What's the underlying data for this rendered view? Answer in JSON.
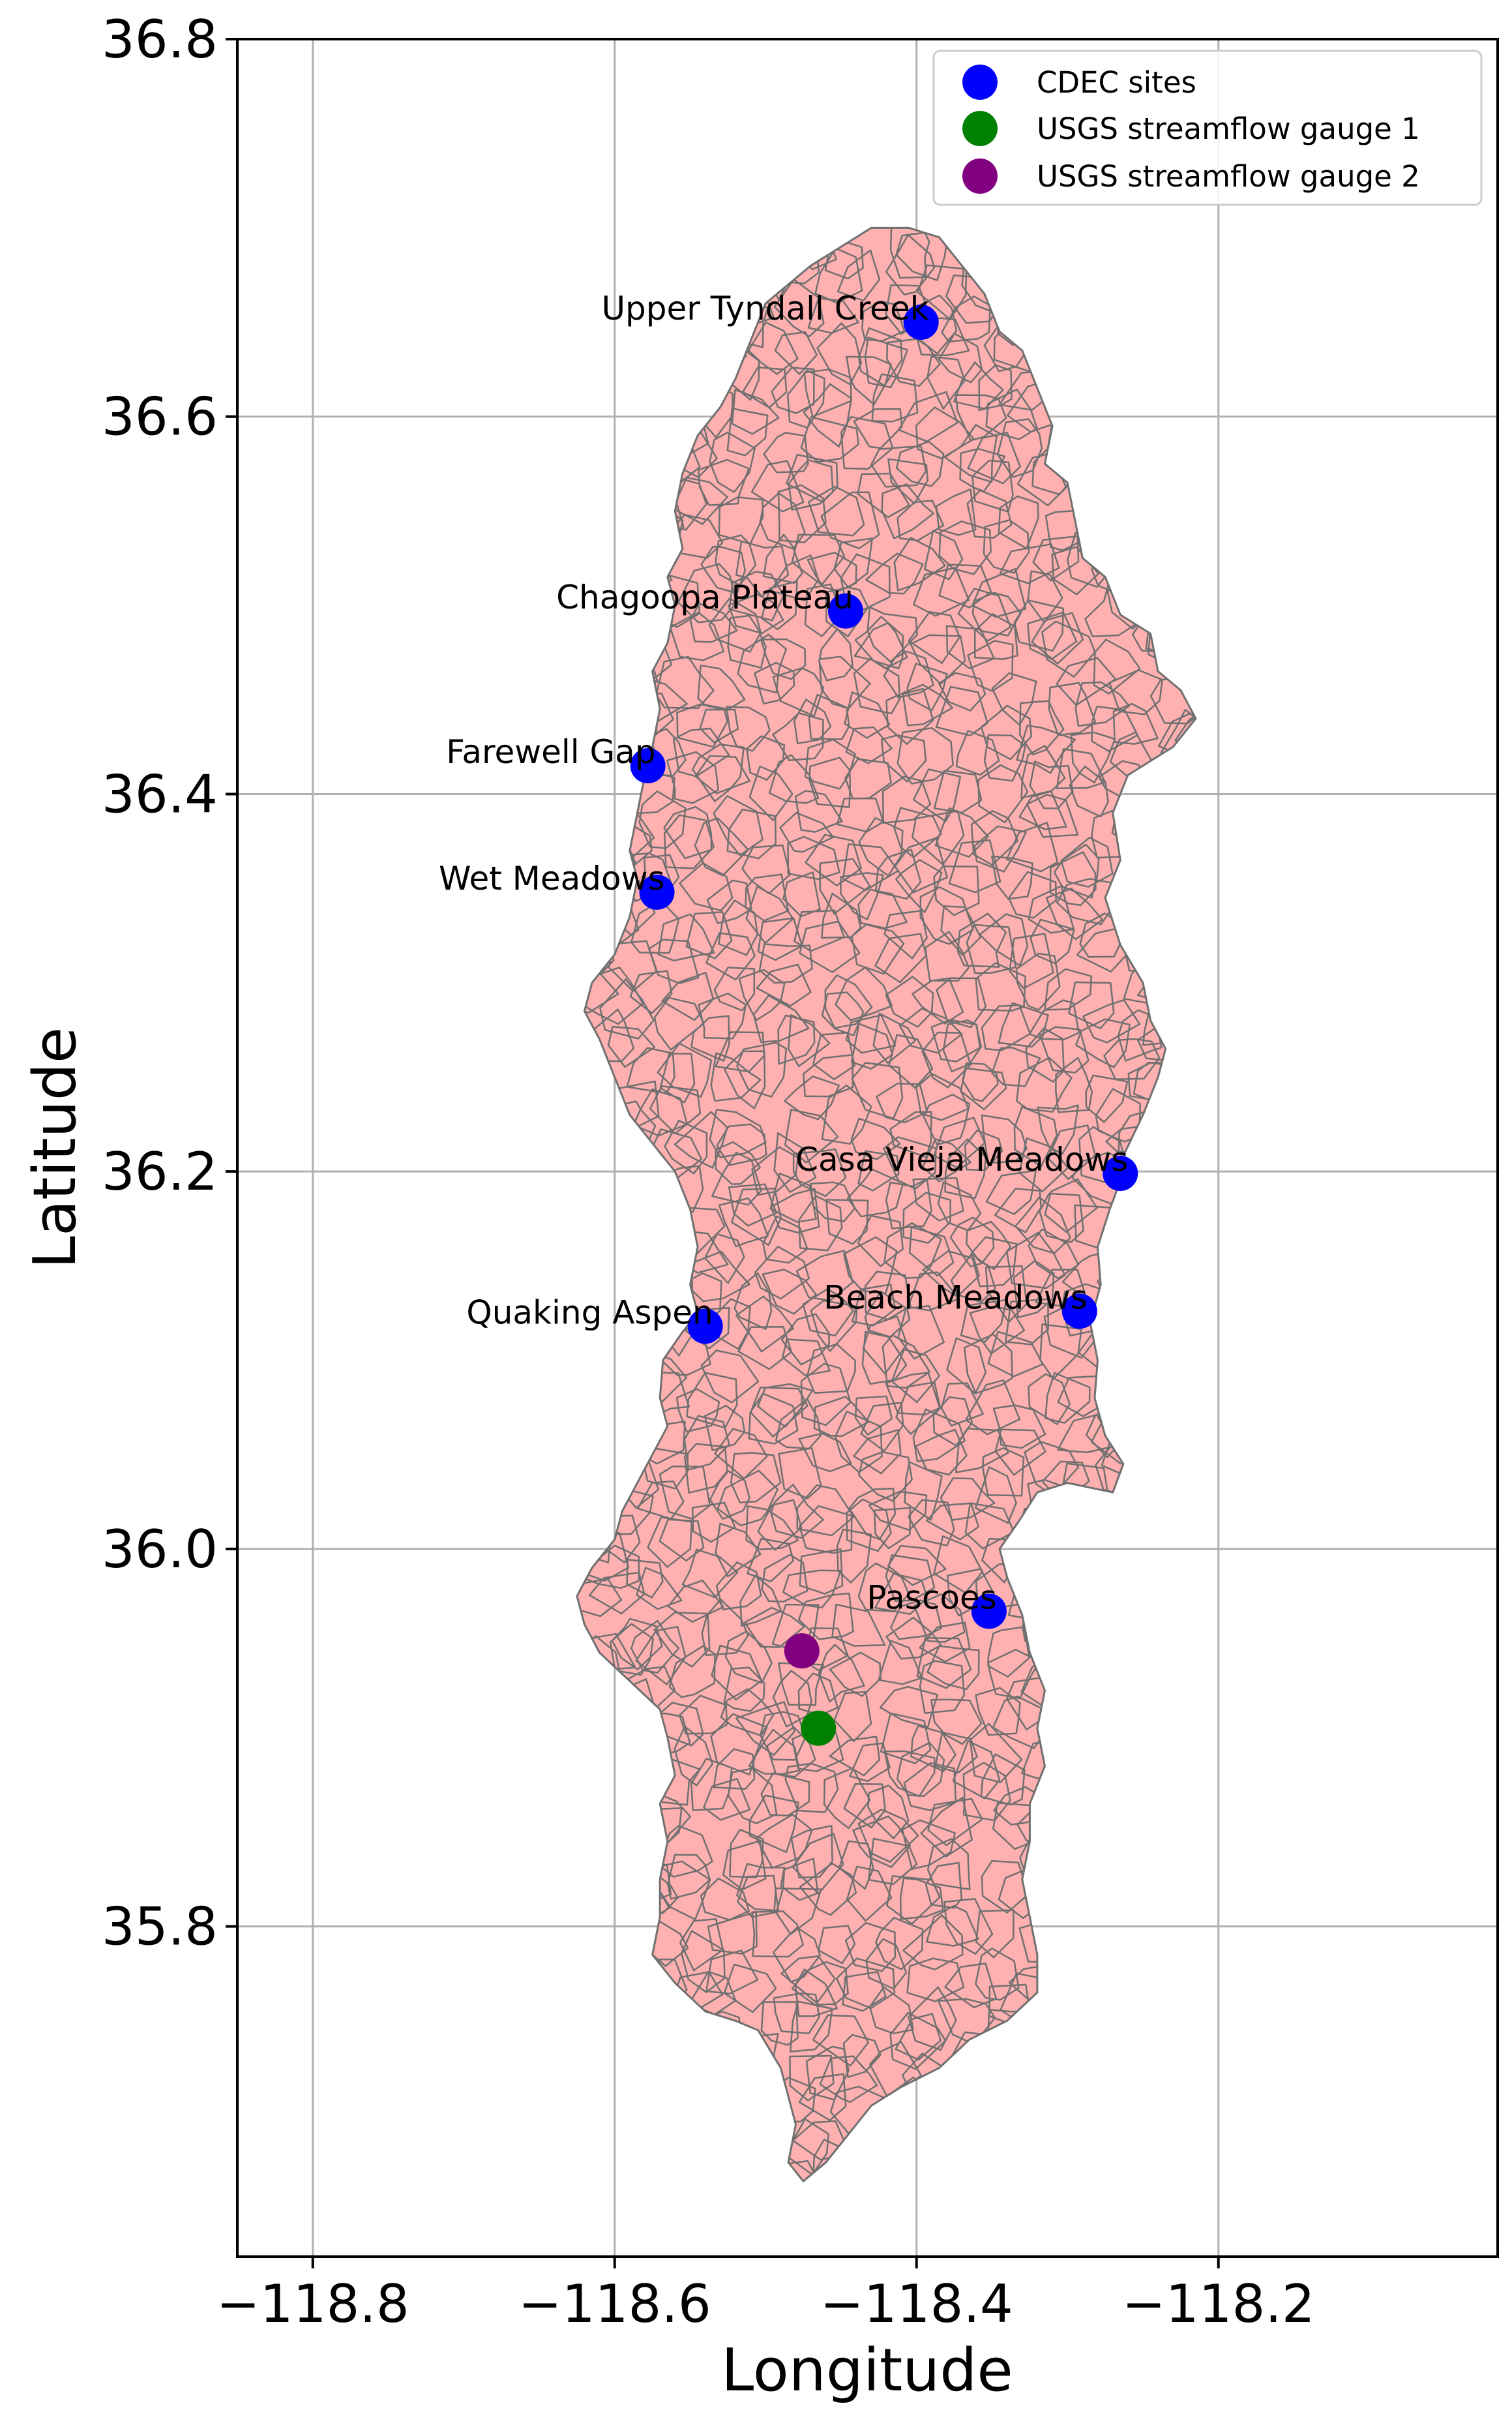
{
  "chart_data": {
    "type": "scatter",
    "xlabel": "Longitude",
    "ylabel": "Latitude",
    "xlim": [
      -118.85,
      -118.015
    ],
    "ylim": [
      35.625,
      36.8
    ],
    "grid": true,
    "xticks": [
      {
        "value": -118.8,
        "label": "−118.8"
      },
      {
        "value": -118.6,
        "label": "−118.6"
      },
      {
        "value": -118.4,
        "label": "−118.4"
      },
      {
        "value": -118.2,
        "label": "−118.2"
      }
    ],
    "yticks": [
      {
        "value": 35.8,
        "label": "35.8"
      },
      {
        "value": 36.0,
        "label": "36.0"
      },
      {
        "value": 36.2,
        "label": "36.2"
      },
      {
        "value": 36.4,
        "label": "36.4"
      },
      {
        "value": 36.6,
        "label": "36.6"
      },
      {
        "value": 36.8,
        "label": "36.8"
      }
    ],
    "watershed": {
      "fill": "#ffb0b0",
      "edge": "#707070",
      "outline": [
        [
          -118.405,
          36.7
        ],
        [
          -118.385,
          36.695
        ],
        [
          -118.37,
          36.68
        ],
        [
          -118.355,
          36.665
        ],
        [
          -118.345,
          36.645
        ],
        [
          -118.33,
          36.635
        ],
        [
          -118.32,
          36.615
        ],
        [
          -118.31,
          36.595
        ],
        [
          -118.315,
          36.575
        ],
        [
          -118.3,
          36.565
        ],
        [
          -118.295,
          36.545
        ],
        [
          -118.29,
          36.525
        ],
        [
          -118.275,
          36.515
        ],
        [
          -118.265,
          36.495
        ],
        [
          -118.245,
          36.485
        ],
        [
          -118.24,
          36.465
        ],
        [
          -118.225,
          36.455
        ],
        [
          -118.215,
          36.44
        ],
        [
          -118.23,
          36.425
        ],
        [
          -118.26,
          36.41
        ],
        [
          -118.27,
          36.39
        ],
        [
          -118.265,
          36.365
        ],
        [
          -118.275,
          36.345
        ],
        [
          -118.265,
          36.32
        ],
        [
          -118.25,
          36.3
        ],
        [
          -118.245,
          36.28
        ],
        [
          -118.235,
          36.265
        ],
        [
          -118.24,
          36.25
        ],
        [
          -118.25,
          36.23
        ],
        [
          -118.262,
          36.21
        ],
        [
          -118.265,
          36.195
        ],
        [
          -118.272,
          36.18
        ],
        [
          -118.28,
          36.16
        ],
        [
          -118.278,
          36.14
        ],
        [
          -118.285,
          36.12
        ],
        [
          -118.28,
          36.1
        ],
        [
          -118.282,
          36.08
        ],
        [
          -118.275,
          36.06
        ],
        [
          -118.263,
          36.045
        ],
        [
          -118.27,
          36.03
        ],
        [
          -118.3,
          36.035
        ],
        [
          -118.32,
          36.03
        ],
        [
          -118.332,
          36.015
        ],
        [
          -118.345,
          36.0
        ],
        [
          -118.34,
          35.985
        ],
        [
          -118.33,
          35.965
        ],
        [
          -118.325,
          35.945
        ],
        [
          -118.315,
          35.925
        ],
        [
          -118.32,
          35.905
        ],
        [
          -118.315,
          35.885
        ],
        [
          -118.325,
          35.865
        ],
        [
          -118.325,
          35.845
        ],
        [
          -118.33,
          35.825
        ],
        [
          -118.325,
          35.805
        ],
        [
          -118.32,
          35.785
        ],
        [
          -118.32,
          35.765
        ],
        [
          -118.34,
          35.75
        ],
        [
          -118.365,
          35.74
        ],
        [
          -118.385,
          35.725
        ],
        [
          -118.41,
          35.715
        ],
        [
          -118.43,
          35.705
        ],
        [
          -118.445,
          35.69
        ],
        [
          -118.46,
          35.675
        ],
        [
          -118.475,
          35.665
        ],
        [
          -118.485,
          35.675
        ],
        [
          -118.48,
          35.695
        ],
        [
          -118.485,
          35.71
        ],
        [
          -118.49,
          35.725
        ],
        [
          -118.505,
          35.745
        ],
        [
          -118.52,
          35.75
        ],
        [
          -118.54,
          35.755
        ],
        [
          -118.56,
          35.77
        ],
        [
          -118.575,
          35.785
        ],
        [
          -118.57,
          35.805
        ],
        [
          -118.57,
          35.825
        ],
        [
          -118.565,
          35.845
        ],
        [
          -118.57,
          35.865
        ],
        [
          -118.56,
          35.88
        ],
        [
          -118.565,
          35.9
        ],
        [
          -118.57,
          35.915
        ],
        [
          -118.59,
          35.93
        ],
        [
          -118.61,
          35.945
        ],
        [
          -118.62,
          35.96
        ],
        [
          -118.625,
          35.975
        ],
        [
          -118.615,
          35.99
        ],
        [
          -118.6,
          36.005
        ],
        [
          -118.595,
          36.02
        ],
        [
          -118.585,
          36.035
        ],
        [
          -118.575,
          36.05
        ],
        [
          -118.565,
          36.065
        ],
        [
          -118.57,
          36.08
        ],
        [
          -118.568,
          36.1
        ],
        [
          -118.555,
          36.115
        ],
        [
          -118.545,
          36.125
        ],
        [
          -118.55,
          36.14
        ],
        [
          -118.545,
          36.16
        ],
        [
          -118.55,
          36.18
        ],
        [
          -118.56,
          36.2
        ],
        [
          -118.575,
          36.215
        ],
        [
          -118.59,
          36.23
        ],
        [
          -118.6,
          36.25
        ],
        [
          -118.61,
          36.27
        ],
        [
          -118.62,
          36.285
        ],
        [
          -118.615,
          36.3
        ],
        [
          -118.6,
          36.315
        ],
        [
          -118.59,
          36.335
        ],
        [
          -118.585,
          36.355
        ],
        [
          -118.59,
          36.37
        ],
        [
          -118.585,
          36.39
        ],
        [
          -118.58,
          36.41
        ],
        [
          -118.575,
          36.425
        ],
        [
          -118.57,
          36.445
        ],
        [
          -118.575,
          36.465
        ],
        [
          -118.565,
          36.48
        ],
        [
          -118.56,
          36.5
        ],
        [
          -118.565,
          36.515
        ],
        [
          -118.555,
          36.53
        ],
        [
          -118.56,
          36.55
        ],
        [
          -118.555,
          36.57
        ],
        [
          -118.545,
          36.59
        ],
        [
          -118.53,
          36.605
        ],
        [
          -118.52,
          36.62
        ],
        [
          -118.51,
          36.64
        ],
        [
          -118.5,
          36.66
        ],
        [
          -118.485,
          36.67
        ],
        [
          -118.47,
          36.68
        ],
        [
          -118.45,
          36.69
        ],
        [
          -118.43,
          36.7
        ]
      ]
    },
    "series": [
      {
        "name": "CDEC sites",
        "color": "#0000ff",
        "points": [
          {
            "label": "Upper Tyndall Creek",
            "x": -118.397,
            "y": 36.65
          },
          {
            "label": "Chagoopa Plateau",
            "x": -118.447,
            "y": 36.497
          },
          {
            "label": "Farewell Gap",
            "x": -118.578,
            "y": 36.415
          },
          {
            "label": "Wet Meadows",
            "x": -118.572,
            "y": 36.348
          },
          {
            "label": "Casa Vieja Meadows",
            "x": -118.265,
            "y": 36.199
          },
          {
            "label": "Quaking Aspen",
            "x": -118.54,
            "y": 36.118
          },
          {
            "label": "Beach Meadows",
            "x": -118.292,
            "y": 36.126
          },
          {
            "label": "Pascoes",
            "x": -118.352,
            "y": 35.967
          }
        ]
      },
      {
        "name": "USGS streamflow gauge 1",
        "color": "#008000",
        "points": [
          {
            "x": -118.465,
            "y": 35.905
          }
        ]
      },
      {
        "name": "USGS streamflow gauge 2",
        "color": "#800080",
        "points": [
          {
            "x": -118.476,
            "y": 35.946
          }
        ]
      }
    ]
  },
  "legend": {
    "placement": "top-right",
    "entries": [
      {
        "name": "CDEC sites",
        "color": "#0000ff"
      },
      {
        "name": "USGS streamflow gauge 1",
        "color": "#008000"
      },
      {
        "name": "USGS streamflow gauge 2",
        "color": "#800080"
      }
    ]
  }
}
